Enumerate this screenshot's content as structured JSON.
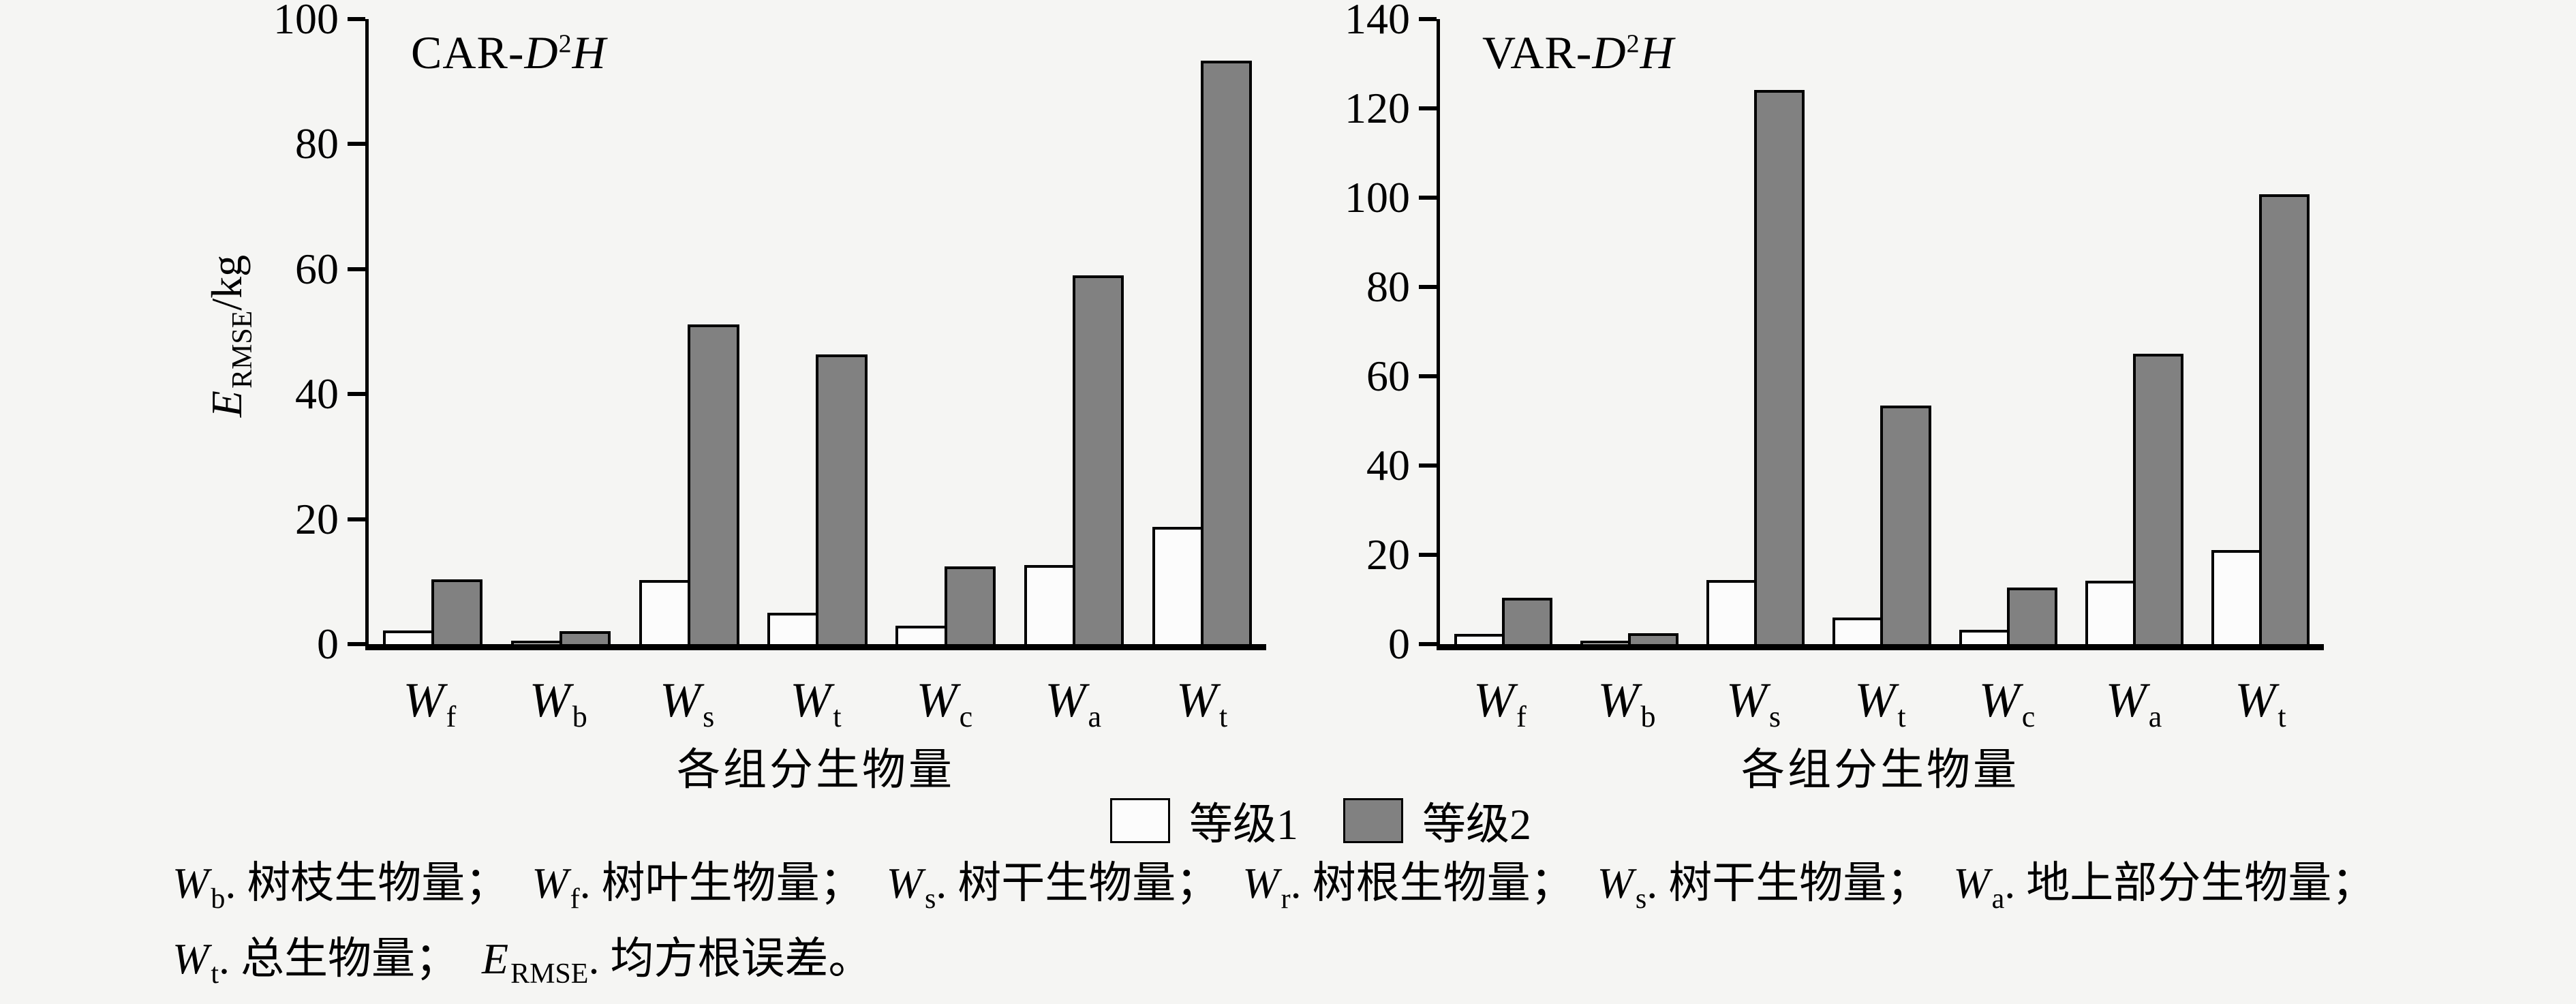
{
  "figure": {
    "background": "#f5f5f3",
    "axis_color": "#000000"
  },
  "y_axis_label": {
    "symbol": "E",
    "sub": "RMSE",
    "unit": "/kg"
  },
  "legend": {
    "items": [
      {
        "label": "等级1",
        "color": "#fcfcfc"
      },
      {
        "label": "等级2",
        "color": "#818181"
      }
    ]
  },
  "footnote": {
    "lines": [
      [
        {
          "sym": "W",
          "sub": "b",
          "desc": ". 树枝生物量；"
        },
        {
          "sym": "W",
          "sub": "f",
          "desc": ". 树叶生物量；"
        },
        {
          "sym": "W",
          "sub": "s",
          "desc": ". 树干生物量；"
        },
        {
          "sym": "W",
          "sub": "r",
          "desc": ". 树根生物量；"
        },
        {
          "sym": "W",
          "sub": "s",
          "desc": ". 树干生物量；"
        },
        {
          "sym": "W",
          "sub": "a",
          "desc": ". 地上部分生物量；"
        }
      ],
      [
        {
          "sym": "W",
          "sub": "t",
          "desc": ". 总生物量；"
        },
        {
          "sym": "E",
          "sub": "RMSE",
          "desc": ". 均方根误差。"
        }
      ]
    ]
  },
  "chart_data": [
    {
      "type": "bar",
      "title": {
        "prefix": "CAR-",
        "base": "D",
        "sup": "2",
        "suffix": "H"
      },
      "title_text": "CAR-D2H",
      "categories": [
        {
          "base": "W",
          "sub": "f"
        },
        {
          "base": "W",
          "sub": "b"
        },
        {
          "base": "W",
          "sub": "s"
        },
        {
          "base": "W",
          "sub": "t"
        },
        {
          "base": "W",
          "sub": "c"
        },
        {
          "base": "W",
          "sub": "a"
        },
        {
          "base": "W",
          "sub": "t"
        }
      ],
      "series": [
        {
          "name": "等级1",
          "color": "#fcfcfc",
          "values": [
            2.2,
            0.6,
            10.3,
            5.0,
            2.9,
            12.7,
            18.8
          ]
        },
        {
          "name": "等级2",
          "color": "#818181",
          "values": [
            10.4,
            2.1,
            51.2,
            46.3,
            12.4,
            59.0,
            93.3
          ]
        }
      ],
      "xlabel": "各组分生物量",
      "ylabel": "E_RMSE/kg",
      "ylim": [
        0,
        100
      ],
      "yticks": [
        0,
        20,
        40,
        60,
        80,
        100
      ],
      "grid": false,
      "legend_position": "bottom-center"
    },
    {
      "type": "bar",
      "title": {
        "prefix": "VAR-",
        "base": "D",
        "sup": "2",
        "suffix": "H"
      },
      "title_text": "VAR-D2H",
      "categories": [
        {
          "base": "W",
          "sub": "f"
        },
        {
          "base": "W",
          "sub": "b"
        },
        {
          "base": "W",
          "sub": "s"
        },
        {
          "base": "W",
          "sub": "t"
        },
        {
          "base": "W",
          "sub": "c"
        },
        {
          "base": "W",
          "sub": "a"
        },
        {
          "base": "W",
          "sub": "t"
        }
      ],
      "series": [
        {
          "name": "等级1",
          "color": "#fcfcfc",
          "values": [
            2.3,
            0.8,
            14.4,
            6.0,
            3.2,
            14.2,
            21.0
          ]
        },
        {
          "name": "等级2",
          "color": "#818181",
          "values": [
            10.4,
            2.4,
            124.2,
            53.5,
            12.6,
            65.0,
            100.8
          ]
        }
      ],
      "xlabel": "各组分生物量",
      "ylabel": "",
      "ylim": [
        0,
        140
      ],
      "yticks": [
        0,
        20,
        40,
        60,
        80,
        100,
        120,
        140
      ],
      "grid": false,
      "legend_position": "bottom-center"
    }
  ]
}
